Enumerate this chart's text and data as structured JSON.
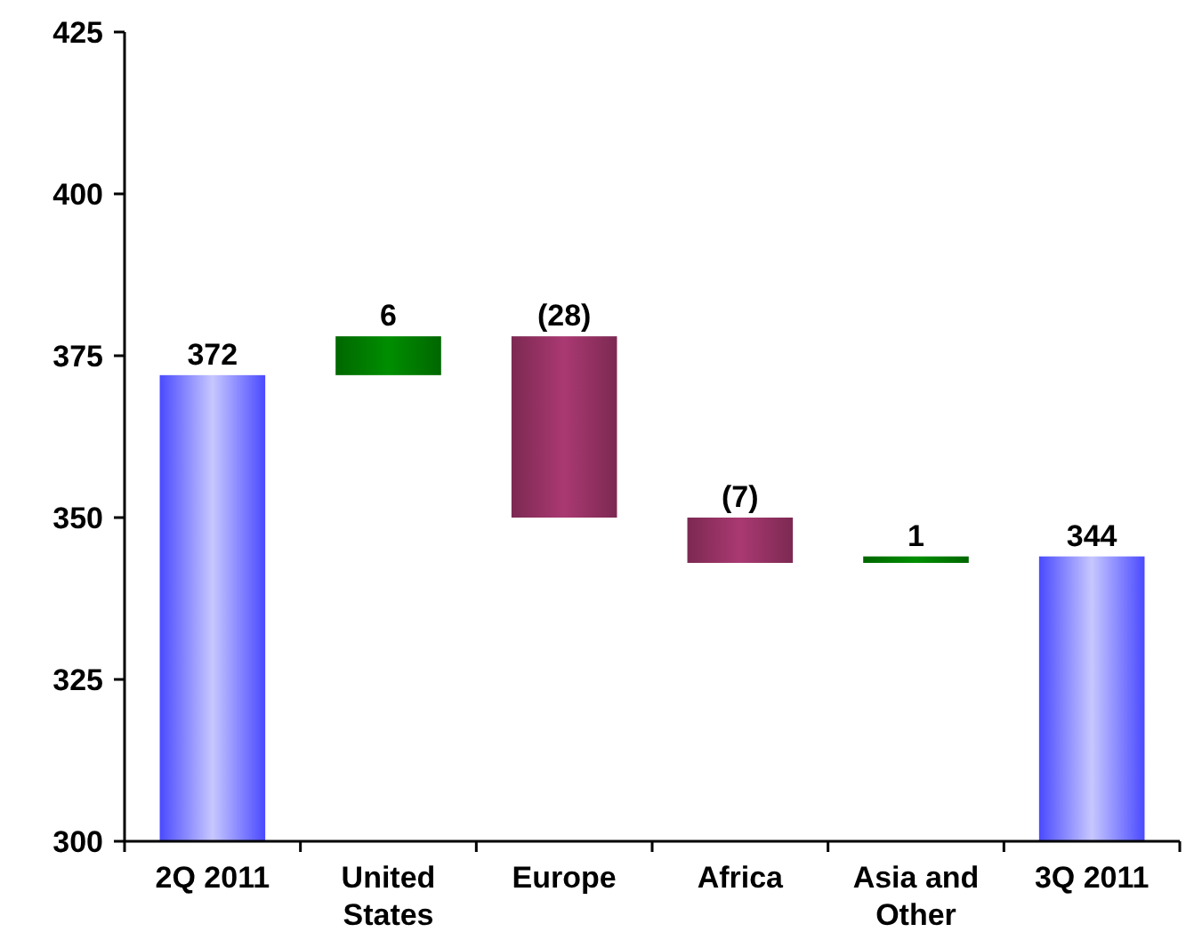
{
  "chart_data": {
    "type": "bar",
    "categories": [
      "2Q 2011",
      "United States",
      "Europe",
      "Africa",
      "Asia and Other",
      "3Q 2011"
    ],
    "values": [
      372,
      6,
      -28,
      -7,
      1,
      344
    ],
    "base": [
      null,
      372,
      378,
      350,
      343,
      null
    ],
    "colors": [
      "#9999ff",
      "#008000",
      "#993366",
      "#993366",
      "#008000",
      "#9999ff"
    ],
    "value_labels": [
      "372",
      "6",
      "(28)",
      "(7)",
      "1",
      "344"
    ],
    "ylim": [
      300,
      425
    ],
    "yticks": [
      300,
      325,
      350,
      375,
      400,
      425
    ],
    "grid": false
  }
}
